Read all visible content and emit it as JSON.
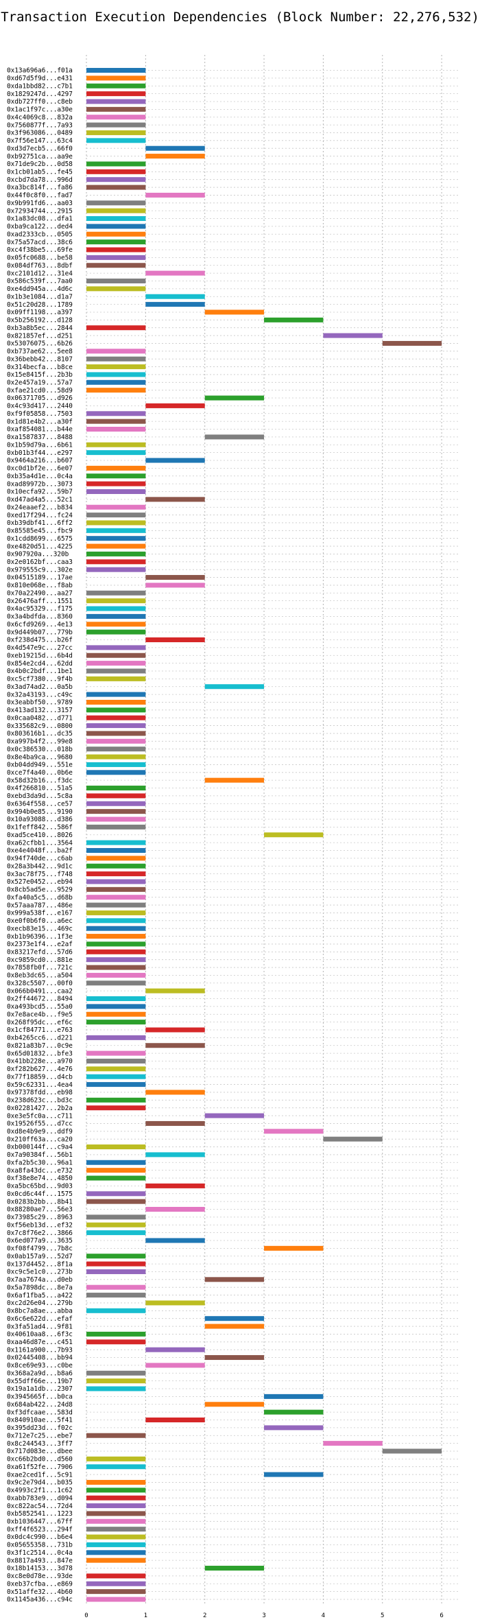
{
  "chart_data": {
    "type": "bar",
    "orientation": "horizontal",
    "title": "Transaction Execution Dependencies (Block Number: 22,276,532)",
    "xlabel": "",
    "ylabel": "",
    "xlim": [
      0,
      6.3
    ],
    "xticks": [
      0,
      1,
      2,
      3,
      4,
      5,
      6
    ],
    "grid": "dotted",
    "legend": "none",
    "palette": [
      "#1f77b4",
      "#ff7f0e",
      "#2ca02c",
      "#d62728",
      "#9467bd",
      "#8c564b",
      "#e377c2",
      "#7f7f7f",
      "#bcbd22",
      "#17becf"
    ],
    "rows": [
      {
        "label": "0x13a696a6...f01a",
        "start": 0,
        "end": 1
      },
      {
        "label": "0xd67d5f9d...e431",
        "start": 0,
        "end": 1
      },
      {
        "label": "0xda1bbd82...c7b1",
        "start": 0,
        "end": 1
      },
      {
        "label": "0x1829247d...4297",
        "start": 0,
        "end": 1
      },
      {
        "label": "0xdb727ff0...c8eb",
        "start": 0,
        "end": 1
      },
      {
        "label": "0x1ac1f97c...a30e",
        "start": 0,
        "end": 1
      },
      {
        "label": "0x4c4069c8...832a",
        "start": 0,
        "end": 1
      },
      {
        "label": "0x7560877f...7a93",
        "start": 0,
        "end": 1
      },
      {
        "label": "0x3f963086...0489",
        "start": 0,
        "end": 1
      },
      {
        "label": "0x7f56e147...63c4",
        "start": 0,
        "end": 1
      },
      {
        "label": "0xd3d7ecb5...66f0",
        "start": 1,
        "end": 2
      },
      {
        "label": "0xb92751ca...aa9e",
        "start": 1,
        "end": 2
      },
      {
        "label": "0x71de9c2b...0d58",
        "start": 0,
        "end": 1
      },
      {
        "label": "0x1cb01ab5...fe45",
        "start": 0,
        "end": 1
      },
      {
        "label": "0xcbd7da78...996d",
        "start": 0,
        "end": 1
      },
      {
        "label": "0xa3bc814f...fa86",
        "start": 0,
        "end": 1
      },
      {
        "label": "0x44f0c8f0...fad7",
        "start": 1,
        "end": 2
      },
      {
        "label": "0x9b991fd6...aa03",
        "start": 0,
        "end": 1
      },
      {
        "label": "0x72934744...2915",
        "start": 0,
        "end": 1
      },
      {
        "label": "0x1a83dc08...dfa1",
        "start": 0,
        "end": 1
      },
      {
        "label": "0xba9ca122...ded4",
        "start": 0,
        "end": 1
      },
      {
        "label": "0xad2333cb...0505",
        "start": 0,
        "end": 1
      },
      {
        "label": "0x75a57acd...38c6",
        "start": 0,
        "end": 1
      },
      {
        "label": "0xc4f38be5...69fe",
        "start": 0,
        "end": 1
      },
      {
        "label": "0x05fc0688...be58",
        "start": 0,
        "end": 1
      },
      {
        "label": "0x084df763...8dbf",
        "start": 0,
        "end": 1
      },
      {
        "label": "0xc2101d12...31e4",
        "start": 1,
        "end": 2
      },
      {
        "label": "0x586c539f...7aa0",
        "start": 0,
        "end": 1
      },
      {
        "label": "0xe4dd945a...4d6c",
        "start": 0,
        "end": 1
      },
      {
        "label": "0x1b3e1084...d1a7",
        "start": 1,
        "end": 2
      },
      {
        "label": "0x51c20d28...1789",
        "start": 1,
        "end": 2
      },
      {
        "label": "0x09ff1198...a397",
        "start": 2,
        "end": 3
      },
      {
        "label": "0x5b256192...d128",
        "start": 3,
        "end": 4
      },
      {
        "label": "0xb3a8b5ec...2844",
        "start": 0,
        "end": 1
      },
      {
        "label": "0x821857ef...d251",
        "start": 4,
        "end": 5
      },
      {
        "label": "0x53076075...6b26",
        "start": 5,
        "end": 6
      },
      {
        "label": "0xb737ae62...5ee8",
        "start": 0,
        "end": 1
      },
      {
        "label": "0x36bebb42...8107",
        "start": 0,
        "end": 1
      },
      {
        "label": "0x314becfa...b8ce",
        "start": 0,
        "end": 1
      },
      {
        "label": "0x15e8415f...2b3b",
        "start": 0,
        "end": 1
      },
      {
        "label": "0x2e457a19...57a7",
        "start": 0,
        "end": 1
      },
      {
        "label": "0xfae21cd0...58d9",
        "start": 0,
        "end": 1
      },
      {
        "label": "0x06371705...d926",
        "start": 2,
        "end": 3
      },
      {
        "label": "0x4c93d417...2440",
        "start": 1,
        "end": 2
      },
      {
        "label": "0xf9f05858...7503",
        "start": 0,
        "end": 1
      },
      {
        "label": "0x1d81e4b2...a30f",
        "start": 0,
        "end": 1
      },
      {
        "label": "0xaf854081...b44e",
        "start": 0,
        "end": 1
      },
      {
        "label": "0xa1587837...8488",
        "start": 2,
        "end": 3
      },
      {
        "label": "0x1b59d79a...6b61",
        "start": 0,
        "end": 1
      },
      {
        "label": "0xb01b3f44...e297",
        "start": 0,
        "end": 1
      },
      {
        "label": "0x9464a216...b607",
        "start": 1,
        "end": 2
      },
      {
        "label": "0xc0d1bf2e...6e07",
        "start": 0,
        "end": 1
      },
      {
        "label": "0xb35a4d1e...0c4a",
        "start": 0,
        "end": 1
      },
      {
        "label": "0xad89972b...3073",
        "start": 0,
        "end": 1
      },
      {
        "label": "0x10ecfa92...59b7",
        "start": 0,
        "end": 1
      },
      {
        "label": "0xd47ad4a5...52c1",
        "start": 1,
        "end": 2
      },
      {
        "label": "0x24eaaef2...b834",
        "start": 0,
        "end": 1
      },
      {
        "label": "0xed17f294...fc24",
        "start": 0,
        "end": 1
      },
      {
        "label": "0xb39dbf41...6ff2",
        "start": 0,
        "end": 1
      },
      {
        "label": "0x85585e45...fbc9",
        "start": 0,
        "end": 1
      },
      {
        "label": "0x1cdd8699...6575",
        "start": 0,
        "end": 1
      },
      {
        "label": "0xe4820d51...4225",
        "start": 0,
        "end": 1
      },
      {
        "label": "0x907920a...320b",
        "start": 0,
        "end": 1
      },
      {
        "label": "0x2e0162bf...caa3",
        "start": 0,
        "end": 1
      },
      {
        "label": "0x979555c9...302e",
        "start": 0,
        "end": 1
      },
      {
        "label": "0x04515189...17ae",
        "start": 1,
        "end": 2
      },
      {
        "label": "0x810e068e...f8ab",
        "start": 1,
        "end": 2
      },
      {
        "label": "0x70a22490...aa27",
        "start": 0,
        "end": 1
      },
      {
        "label": "0x26476aff...1551",
        "start": 0,
        "end": 1
      },
      {
        "label": "0x4ac95329...f175",
        "start": 0,
        "end": 1
      },
      {
        "label": "0x3a4bdfda...8360",
        "start": 0,
        "end": 1
      },
      {
        "label": "0x6cfd9269...4e13",
        "start": 0,
        "end": 1
      },
      {
        "label": "0x9d449b07...779b",
        "start": 0,
        "end": 1
      },
      {
        "label": "0xf238d475...b26f",
        "start": 1,
        "end": 2
      },
      {
        "label": "0x4d547e9c...27cc",
        "start": 0,
        "end": 1
      },
      {
        "label": "0xeb19215d...6b4d",
        "start": 0,
        "end": 1
      },
      {
        "label": "0x854e2cd4...62dd",
        "start": 0,
        "end": 1
      },
      {
        "label": "0x4b0c2bdf...1be1",
        "start": 0,
        "end": 1
      },
      {
        "label": "0xc5cf7380...9f4b",
        "start": 0,
        "end": 1
      },
      {
        "label": "0x3ad74ad2...0a5b",
        "start": 2,
        "end": 3
      },
      {
        "label": "0x32a43193...c49c",
        "start": 0,
        "end": 1
      },
      {
        "label": "0x3eabbf50...9789",
        "start": 0,
        "end": 1
      },
      {
        "label": "0x413ad132...3157",
        "start": 0,
        "end": 1
      },
      {
        "label": "0x0caa0482...d771",
        "start": 0,
        "end": 1
      },
      {
        "label": "0x335682c9...0800",
        "start": 0,
        "end": 1
      },
      {
        "label": "0x803616b1...dc35",
        "start": 0,
        "end": 1
      },
      {
        "label": "0xa997b4f2...99e8",
        "start": 0,
        "end": 1
      },
      {
        "label": "0x0c386530...018b",
        "start": 0,
        "end": 1
      },
      {
        "label": "0x8e4ba9ca...9680",
        "start": 0,
        "end": 1
      },
      {
        "label": "0xb04dd949...551e",
        "start": 0,
        "end": 1
      },
      {
        "label": "0xce7f4a40...0b6e",
        "start": 0,
        "end": 1
      },
      {
        "label": "0x58d32b16...f3dc",
        "start": 2,
        "end": 3
      },
      {
        "label": "0x4f266810...51a5",
        "start": 0,
        "end": 1
      },
      {
        "label": "0xebd3da9d...5c8a",
        "start": 0,
        "end": 1
      },
      {
        "label": "0x6364f558...ce57",
        "start": 0,
        "end": 1
      },
      {
        "label": "0x994b0e85...9190",
        "start": 0,
        "end": 1
      },
      {
        "label": "0x10a93088...d386",
        "start": 0,
        "end": 1
      },
      {
        "label": "0x1feff842...586f",
        "start": 0,
        "end": 1
      },
      {
        "label": "0xad5ce410...8026",
        "start": 3,
        "end": 4
      },
      {
        "label": "0xa62cfbb1...3564",
        "start": 0,
        "end": 1
      },
      {
        "label": "0xe4e4048f...ba2f",
        "start": 0,
        "end": 1
      },
      {
        "label": "0x94f740de...c6ab",
        "start": 0,
        "end": 1
      },
      {
        "label": "0x28a3b442...9d1c",
        "start": 0,
        "end": 1
      },
      {
        "label": "0x3ac78f75...f748",
        "start": 0,
        "end": 1
      },
      {
        "label": "0x527e0452...eb94",
        "start": 0,
        "end": 1
      },
      {
        "label": "0x8cb5ad5e...9529",
        "start": 0,
        "end": 1
      },
      {
        "label": "0xfa40a5c5...d68b",
        "start": 0,
        "end": 1
      },
      {
        "label": "0x57aaa787...486e",
        "start": 0,
        "end": 1
      },
      {
        "label": "0x999a538f...e167",
        "start": 0,
        "end": 1
      },
      {
        "label": "0xe0f0b6f0...a6ec",
        "start": 0,
        "end": 1
      },
      {
        "label": "0xecb83e15...469c",
        "start": 0,
        "end": 1
      },
      {
        "label": "0xb1b96396...1f3e",
        "start": 0,
        "end": 1
      },
      {
        "label": "0x2373e1f4...e2af",
        "start": 0,
        "end": 1
      },
      {
        "label": "0x83217efd...57d6",
        "start": 0,
        "end": 1
      },
      {
        "label": "0xc9859cd0...881e",
        "start": 0,
        "end": 1
      },
      {
        "label": "0x7858fb0f...721c",
        "start": 0,
        "end": 1
      },
      {
        "label": "0x8eb3dc65...a504",
        "start": 0,
        "end": 1
      },
      {
        "label": "0x328c5507...00f0",
        "start": 0,
        "end": 1
      },
      {
        "label": "0x066b0491...caa2",
        "start": 1,
        "end": 2
      },
      {
        "label": "0x2ff44672...8494",
        "start": 0,
        "end": 1
      },
      {
        "label": "0xa493bcd5...55a0",
        "start": 0,
        "end": 1
      },
      {
        "label": "0x7e8ace4b...f9e5",
        "start": 0,
        "end": 1
      },
      {
        "label": "0x268f95dc...ef6c",
        "start": 0,
        "end": 1
      },
      {
        "label": "0x1cf84771...e763",
        "start": 1,
        "end": 2
      },
      {
        "label": "0xb4265cc6...d221",
        "start": 0,
        "end": 1
      },
      {
        "label": "0x821a83b7...0c9e",
        "start": 1,
        "end": 2
      },
      {
        "label": "0x65d01832...bfe3",
        "start": 0,
        "end": 1
      },
      {
        "label": "0x41bb228e...a970",
        "start": 0,
        "end": 1
      },
      {
        "label": "0xf282b627...4e76",
        "start": 0,
        "end": 1
      },
      {
        "label": "0x77f18859...d4cb",
        "start": 0,
        "end": 1
      },
      {
        "label": "0x59c62331...4ea4",
        "start": 0,
        "end": 1
      },
      {
        "label": "0x97378fdd...eb98",
        "start": 1,
        "end": 2
      },
      {
        "label": "0x238d623c...bd3c",
        "start": 0,
        "end": 1
      },
      {
        "label": "0x02281427...2b2a",
        "start": 0,
        "end": 1
      },
      {
        "label": "0xe3e5fc0a...c711",
        "start": 2,
        "end": 3
      },
      {
        "label": "0x19526f55...d7cc",
        "start": 1,
        "end": 2
      },
      {
        "label": "0xd8e4b9e9...ddf9",
        "start": 3,
        "end": 4
      },
      {
        "label": "0x210ff63a...ca20",
        "start": 4,
        "end": 5
      },
      {
        "label": "0xb000144f...c9a4",
        "start": 0,
        "end": 1
      },
      {
        "label": "0x7a90384f...56b1",
        "start": 1,
        "end": 2
      },
      {
        "label": "0xfa2b5c30...96a1",
        "start": 0,
        "end": 1
      },
      {
        "label": "0xa8fa43dc...e732",
        "start": 0,
        "end": 1
      },
      {
        "label": "0xf38e8e74...4850",
        "start": 0,
        "end": 1
      },
      {
        "label": "0xa5bc65bd...9d03",
        "start": 1,
        "end": 2
      },
      {
        "label": "0x0cd6c44f...1575",
        "start": 0,
        "end": 1
      },
      {
        "label": "0x0283b2bb...8b41",
        "start": 0,
        "end": 1
      },
      {
        "label": "0x88280ae7...56e3",
        "start": 1,
        "end": 2
      },
      {
        "label": "0x73985c29...8963",
        "start": 0,
        "end": 1
      },
      {
        "label": "0xf56eb13d...ef32",
        "start": 0,
        "end": 1
      },
      {
        "label": "0x7c8f76e2...3866",
        "start": 0,
        "end": 1
      },
      {
        "label": "0x6ed077a9...3635",
        "start": 1,
        "end": 2
      },
      {
        "label": "0xf08f4799...7b8c",
        "start": 3,
        "end": 4
      },
      {
        "label": "0x0ab157a9...52d7",
        "start": 0,
        "end": 1
      },
      {
        "label": "0x137d4452...8f1a",
        "start": 0,
        "end": 1
      },
      {
        "label": "0xc9c5e1c0...273b",
        "start": 0,
        "end": 1
      },
      {
        "label": "0x7aa7674a...d0eb",
        "start": 2,
        "end": 3
      },
      {
        "label": "0x5a7898dc...8e7a",
        "start": 0,
        "end": 1
      },
      {
        "label": "0x6af1fba5...a422",
        "start": 0,
        "end": 1
      },
      {
        "label": "0xc2d26e04...279b",
        "start": 1,
        "end": 2
      },
      {
        "label": "0x8bc7a8ae...abba",
        "start": 0,
        "end": 1
      },
      {
        "label": "0x6c6e622d...efaf",
        "start": 2,
        "end": 3
      },
      {
        "label": "0x3fa51ad4...9f81",
        "start": 2,
        "end": 3
      },
      {
        "label": "0x40610aa8...6f3c",
        "start": 0,
        "end": 1
      },
      {
        "label": "0xaa46d87e...c451",
        "start": 0,
        "end": 1
      },
      {
        "label": "0x1161a900...7b93",
        "start": 1,
        "end": 2
      },
      {
        "label": "0x02445408...bb94",
        "start": 2,
        "end": 3
      },
      {
        "label": "0x8ce69e93...c0be",
        "start": 1,
        "end": 2
      },
      {
        "label": "0x368a2a9d...b8a6",
        "start": 0,
        "end": 1
      },
      {
        "label": "0x55dff66e...19b7",
        "start": 0,
        "end": 1
      },
      {
        "label": "0x19a1a1db...2307",
        "start": 0,
        "end": 1
      },
      {
        "label": "0x3945665f...b0ca",
        "start": 3,
        "end": 4
      },
      {
        "label": "0x684ab422...24d8",
        "start": 2,
        "end": 3
      },
      {
        "label": "0xf3dfcaae...583d",
        "start": 3,
        "end": 4
      },
      {
        "label": "0x840910ae...5f41",
        "start": 1,
        "end": 2
      },
      {
        "label": "0x395dd23d...f02c",
        "start": 3,
        "end": 4
      },
      {
        "label": "0x712e7c25...ebe7",
        "start": 0,
        "end": 1
      },
      {
        "label": "0x8c244543...3ff7",
        "start": 4,
        "end": 5
      },
      {
        "label": "0x717d083e...dbee",
        "start": 5,
        "end": 6
      },
      {
        "label": "0xc66b2bd0...d560",
        "start": 0,
        "end": 1
      },
      {
        "label": "0xa61f52fe...7906",
        "start": 0,
        "end": 1
      },
      {
        "label": "0xae2ced1f...5c91",
        "start": 3,
        "end": 4
      },
      {
        "label": "0x9c2e79d4...b035",
        "start": 0,
        "end": 1
      },
      {
        "label": "0x4993c2f1...1c62",
        "start": 0,
        "end": 1
      },
      {
        "label": "0xabb783e9...d094",
        "start": 0,
        "end": 1
      },
      {
        "label": "0xc822ac54...72d4",
        "start": 0,
        "end": 1
      },
      {
        "label": "0xb5852541...1223",
        "start": 0,
        "end": 1
      },
      {
        "label": "0xb1036447...67ff",
        "start": 0,
        "end": 1
      },
      {
        "label": "0xff4f6523...294f",
        "start": 0,
        "end": 1
      },
      {
        "label": "0x0dc4c990...b6e4",
        "start": 0,
        "end": 1
      },
      {
        "label": "0x05655358...731b",
        "start": 0,
        "end": 1
      },
      {
        "label": "0x3f1c2514...0c4a",
        "start": 0,
        "end": 1
      },
      {
        "label": "0x8817a493...847e",
        "start": 0,
        "end": 1
      },
      {
        "label": "0x18b14153...3d78",
        "start": 2,
        "end": 3
      },
      {
        "label": "0xc8e0d78e...93de",
        "start": 0,
        "end": 1
      },
      {
        "label": "0xeb37cfba...e869",
        "start": 0,
        "end": 1
      },
      {
        "label": "0x51affe32...4b60",
        "start": 0,
        "end": 1
      },
      {
        "label": "0x1145a436...c94c",
        "start": 0,
        "end": 1
      }
    ]
  }
}
